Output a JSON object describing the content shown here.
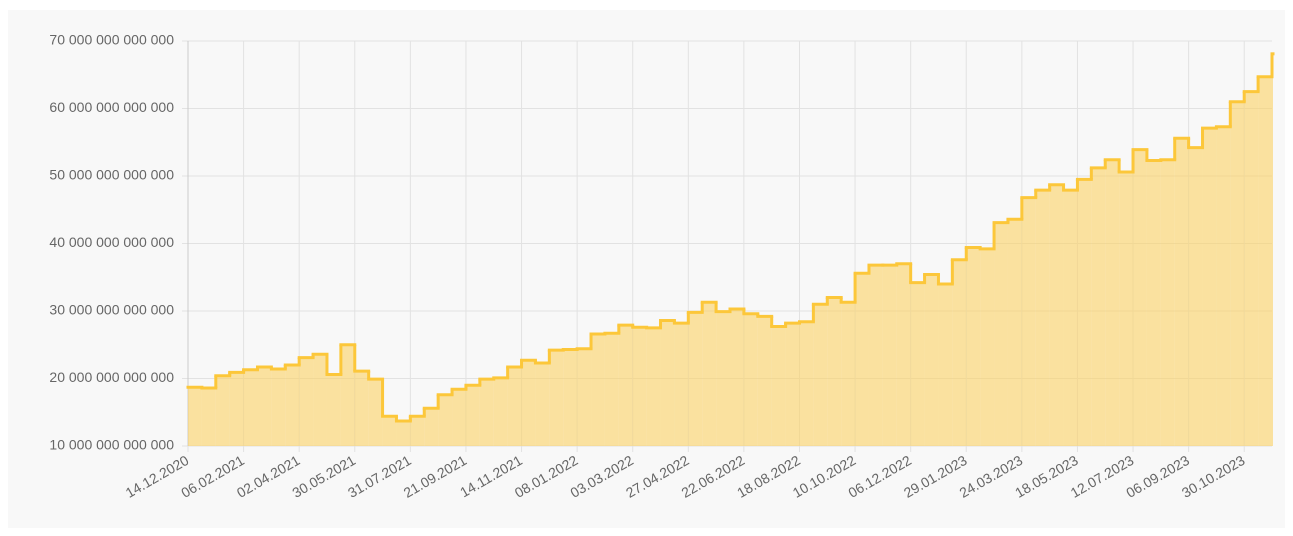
{
  "chart_data": {
    "type": "step",
    "categories": [
      "14.12.2020",
      null,
      null,
      null,
      "06.02.2021",
      null,
      null,
      null,
      "02.04.2021",
      null,
      null,
      null,
      "30.05.2021",
      null,
      null,
      null,
      "31.07.2021",
      null,
      null,
      null,
      "21.09.2021",
      null,
      null,
      null,
      "14.11.2021",
      null,
      null,
      null,
      "08.01.2022",
      null,
      null,
      null,
      "03.03.2022",
      null,
      null,
      null,
      "27.04.2022",
      null,
      null,
      null,
      "22.06.2022",
      null,
      null,
      null,
      "18.08.2022",
      null,
      null,
      null,
      "10.10.2022",
      null,
      null,
      null,
      "06.12.2022",
      null,
      null,
      null,
      "29.01.2023",
      null,
      null,
      null,
      "24.03.2023",
      null,
      null,
      null,
      "18.05.2023",
      null,
      null,
      null,
      "12.07.2023",
      null,
      null,
      null,
      "06.09.2023",
      null,
      null,
      null,
      "30.10.2023",
      null,
      null
    ],
    "values": [
      18700000000000,
      18600000000000,
      20400000000000,
      20900000000000,
      21300000000000,
      21700000000000,
      21400000000000,
      22000000000000,
      23100000000000,
      23600000000000,
      20600000000000,
      25000000000000,
      21100000000000,
      19900000000000,
      14400000000000,
      13700000000000,
      14400000000000,
      15600000000000,
      17600000000000,
      18400000000000,
      19000000000000,
      19900000000000,
      20100000000000,
      21700000000000,
      22700000000000,
      22300000000000,
      24200000000000,
      24300000000000,
      24400000000000,
      26600000000000,
      26700000000000,
      27900000000000,
      27600000000000,
      27500000000000,
      28600000000000,
      28200000000000,
      29800000000000,
      31300000000000,
      29900000000000,
      30300000000000,
      29600000000000,
      29200000000000,
      27700000000000,
      28200000000000,
      28400000000000,
      31000000000000,
      32000000000000,
      31300000000000,
      35600000000000,
      36800000000000,
      36800000000000,
      37000000000000,
      34200000000000,
      35400000000000,
      34000000000000,
      37600000000000,
      39400000000000,
      39200000000000,
      43100000000000,
      43600000000000,
      46800000000000,
      47900000000000,
      48700000000000,
      47900000000000,
      49500000000000,
      51200000000000,
      52400000000000,
      50600000000000,
      53900000000000,
      52300000000000,
      52400000000000,
      55600000000000,
      54200000000000,
      57100000000000,
      57300000000000,
      61000000000000,
      62500000000000,
      64700000000000,
      68100000000000
    ],
    "color": "#fcc73a",
    "fill": "rgba(252,210,100,0.6)",
    "ylim": [
      10000000000000,
      70000000000000
    ],
    "yticks": [
      {
        "value": 10000000000000,
        "label": "10 000 000 000 000"
      },
      {
        "value": 20000000000000,
        "label": "20 000 000 000 000"
      },
      {
        "value": 30000000000000,
        "label": "30 000 000 000 000"
      },
      {
        "value": 40000000000000,
        "label": "40 000 000 000 000"
      },
      {
        "value": 50000000000000,
        "label": "50 000 000 000 000"
      },
      {
        "value": 60000000000000,
        "label": "60 000 000 000 000"
      },
      {
        "value": 70000000000000,
        "label": "70 000 000 000 000"
      }
    ],
    "grid": true
  }
}
